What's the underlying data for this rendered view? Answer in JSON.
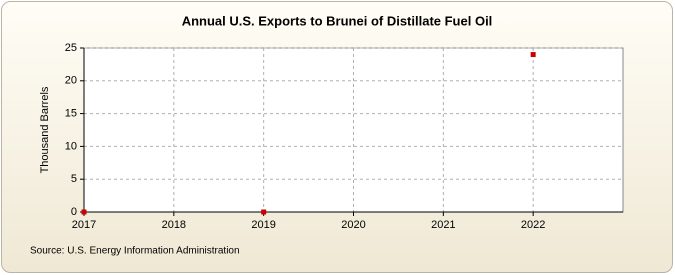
{
  "chart_data": {
    "type": "line",
    "title": "Annual U.S. Exports to Brunei of Distillate Fuel Oil",
    "ylabel": "Thousand Barrels",
    "source": "Source: U.S. Energy Information Administration",
    "x": [
      2017,
      2018,
      2019,
      2020,
      2021,
      2022
    ],
    "values": [
      0,
      null,
      0,
      null,
      null,
      24
    ],
    "color": "#cc0000",
    "xlim": [
      2017,
      2023
    ],
    "xticks": [
      2017,
      2018,
      2019,
      2020,
      2021,
      2022
    ],
    "ylim": [
      0,
      25
    ],
    "yticks": [
      0,
      5,
      10,
      15,
      20,
      25
    ],
    "grid": true
  }
}
